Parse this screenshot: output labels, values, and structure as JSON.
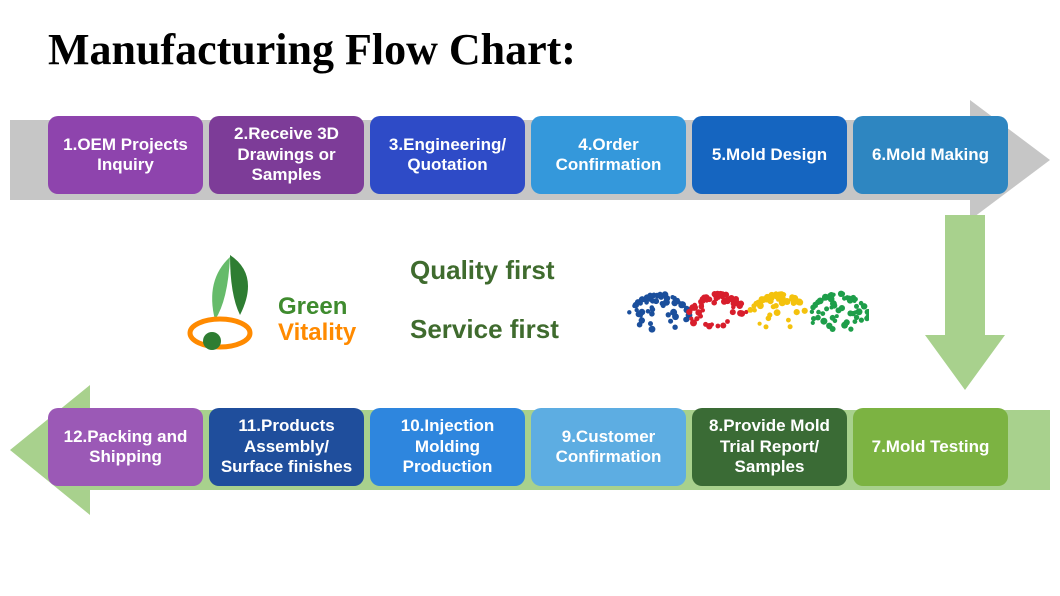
{
  "title": "Manufacturing Flow Chart:",
  "title_fontsize": 44,
  "background": "#ffffff",
  "arrow_top_color": "#c6c6c6",
  "arrow_bottom_color": "#a8d18d",
  "arrow_down_color": "#a8d18d",
  "step_fontsize": 17,
  "step_radius": 10,
  "step_width": 155,
  "step_height": 78,
  "top_steps": [
    {
      "label": "1.OEM Projects Inquiry",
      "color": "#8e44ad"
    },
    {
      "label": "2.Receive 3D Drawings or Samples",
      "color": "#7d3c98"
    },
    {
      "label": "3.Engineering/ Quotation",
      "color": "#2e4bc7"
    },
    {
      "label": "4.Order Confirmation",
      "color": "#3498db"
    },
    {
      "label": "5.Mold Design",
      "color": "#1565c0"
    },
    {
      "label": "6.Mold Making",
      "color": "#2e86c1"
    }
  ],
  "bottom_steps": [
    {
      "label": "12.Packing and Shipping",
      "color": "#9b59b6"
    },
    {
      "label": "11.Products Assembly/ Surface finishes",
      "color": "#1f4e9c"
    },
    {
      "label": "10.Injection Molding Production",
      "color": "#2e86de"
    },
    {
      "label": "9.Customer Confirmation",
      "color": "#5dade2"
    },
    {
      "label": "8.Provide Mold Trial Report/ Samples",
      "color": "#3a6b35"
    },
    {
      "label": "7.Mold Testing",
      "color": "#7cb342"
    }
  ],
  "logo": {
    "green_text": "Green",
    "orange_text": "Vitality",
    "green_color": "#3f8b2e",
    "orange_color": "#ff8a00"
  },
  "slogans": {
    "line1": "Quality first",
    "line2": "Service first",
    "color": "#3f6b2e",
    "fontsize": 26
  },
  "pellets": {
    "colors": [
      "#1b4f9c",
      "#d81e2c",
      "#f4c20d",
      "#1e9e4a"
    ]
  }
}
